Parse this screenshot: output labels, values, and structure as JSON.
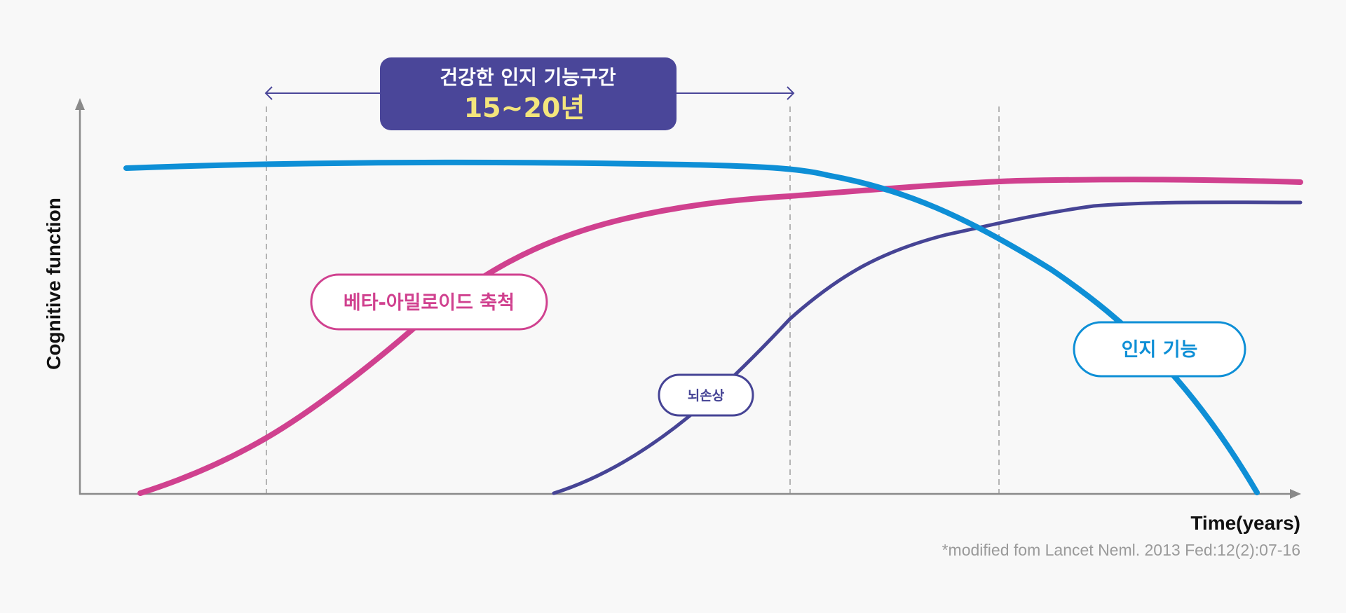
{
  "colors": {
    "background": "#f8f8f8",
    "axis": "#8a8a8a",
    "guide": "#b4b4b4",
    "cognitive": "#0e8fd6",
    "amyloid": "#d0418f",
    "brain_damage": "#464495",
    "period_box": "#4a4699",
    "period_number": "#f3e57c"
  },
  "axes": {
    "y_label": "Cognitive function",
    "x_label": "Time(years)"
  },
  "period": {
    "title": "건강한 인지 기능구간",
    "value": "15~20년"
  },
  "labels": {
    "amyloid": "베타-아밀로이드 축척",
    "brain_damage": "뇌손상",
    "cognitive": "인지 기능"
  },
  "source": "*modified fom Lancet Neml. 2013 Fed:12(2):07-16"
}
